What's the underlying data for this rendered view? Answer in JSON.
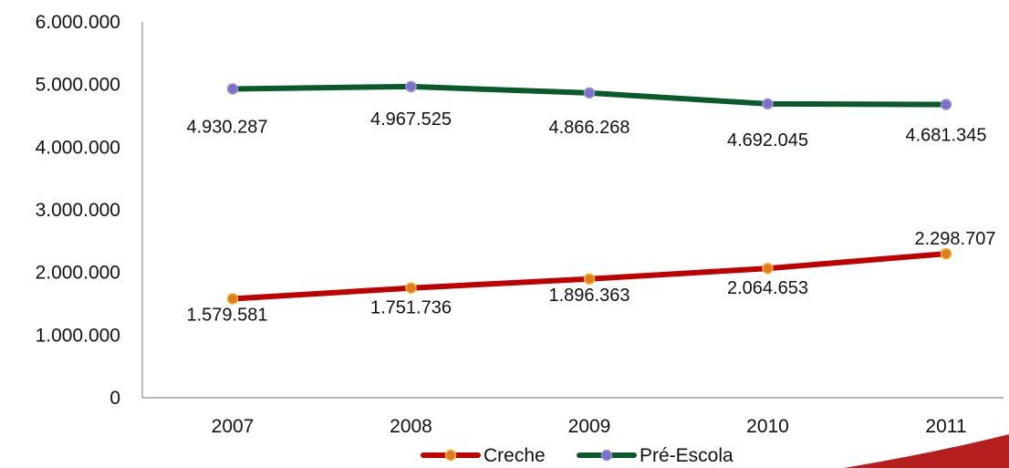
{
  "chart_data": {
    "type": "line",
    "categories": [
      "2007",
      "2008",
      "2009",
      "2010",
      "2011"
    ],
    "ylim": [
      0,
      6000000
    ],
    "y_ticks": [
      "0",
      "1.000.000",
      "2.000.000",
      "3.000.000",
      "4.000.000",
      "5.000.000",
      "6.000.000"
    ],
    "grid": false,
    "legend_position": "bottom",
    "series": [
      {
        "name": "Creche",
        "color": "#c00000",
        "marker_color": "#e07b20",
        "values": [
          1579581,
          1751736,
          1896363,
          2064653,
          2298707
        ],
        "labels": [
          "1.579.581",
          "1.751.736",
          "1.896.363",
          "2.064.653",
          "2.298.707"
        ]
      },
      {
        "name": "Pré-Escola",
        "color": "#0a5a2a",
        "marker_color": "#7b6fc7",
        "values": [
          4930287,
          4967525,
          4866268,
          4692045,
          4681345
        ],
        "labels": [
          "4.930.287",
          "4.967.525",
          "4.866.268",
          "4.692.045",
          "4.681.345"
        ]
      }
    ]
  },
  "legend": {
    "items": [
      "Creche",
      "Pré-Escola"
    ]
  }
}
